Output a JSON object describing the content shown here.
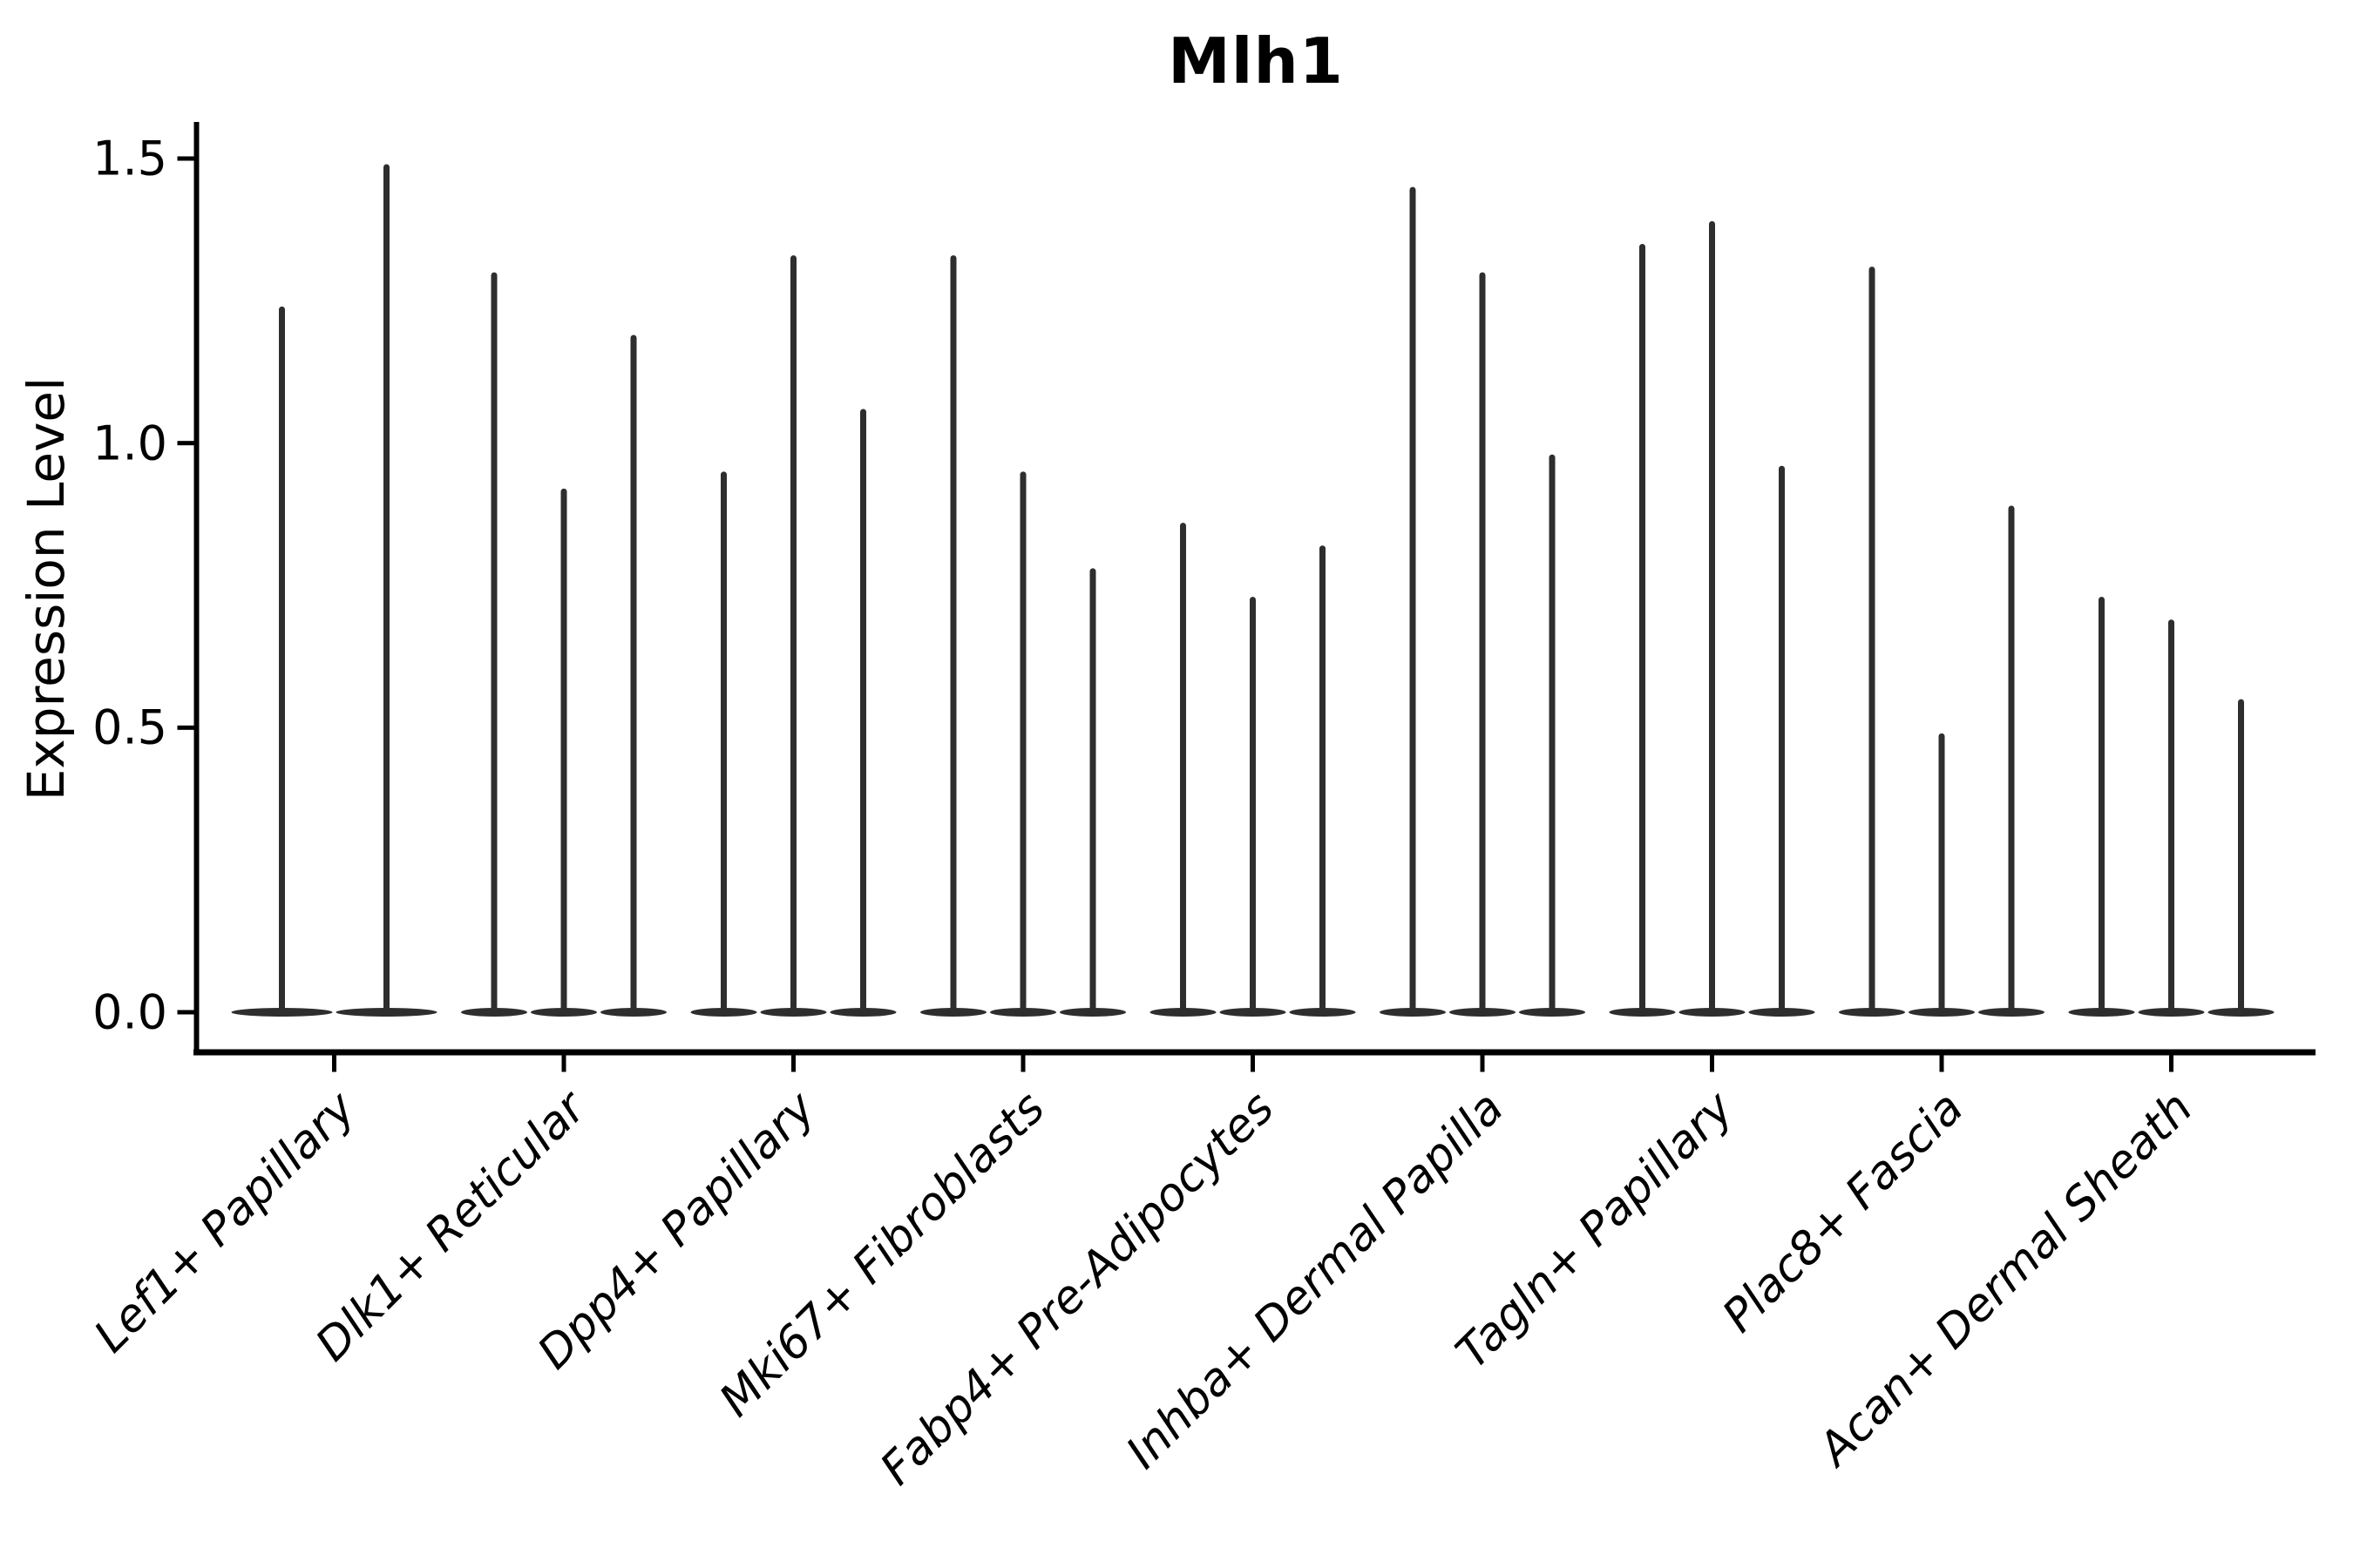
{
  "title": "Mlh1",
  "axes": {
    "ylabel": "Expression Level",
    "yticks": [
      {
        "label": "0.0",
        "value": 0.0
      },
      {
        "label": "0.5",
        "value": 0.5
      },
      {
        "label": "1.0",
        "value": 1.0
      },
      {
        "label": "1.5",
        "value": 1.5
      }
    ]
  },
  "colors": {
    "violin": "#2e2e2e",
    "axis": "#000000",
    "text": "#000000",
    "background": "#ffffff"
  },
  "chart_data": {
    "type": "violin",
    "title": "Mlh1",
    "xlabel": "",
    "ylabel": "Expression Level",
    "ylim": [
      -0.07,
      1.57
    ],
    "yticks": [
      0.0,
      0.5,
      1.0,
      1.5
    ],
    "grid": false,
    "legend": "none",
    "categories": [
      "Lef1+ Papillary",
      "Dlk1+ Reticular",
      "Dpp4+ Papillary",
      "Mki67+ Fibroblasts",
      "Fabp4+ Pre-Adipocytes",
      "Inhba+ Dermal Papilla",
      "Tagln+ Papillary",
      "Plac8+ Fascia",
      "Acan+ Dermal Sheath"
    ],
    "violin_max_per_category": [
      [
        1.24,
        1.49
      ],
      [
        1.3,
        0.92,
        1.19
      ],
      [
        0.95,
        1.33,
        1.06
      ],
      [
        1.33,
        0.95,
        0.78
      ],
      [
        0.86,
        0.73,
        0.82
      ],
      [
        1.45,
        1.3,
        0.98
      ],
      [
        1.35,
        1.39,
        0.96
      ],
      [
        1.31,
        0.49,
        0.89
      ],
      [
        0.73,
        0.69,
        0.55
      ]
    ],
    "distribution_mode": 0.0
  }
}
